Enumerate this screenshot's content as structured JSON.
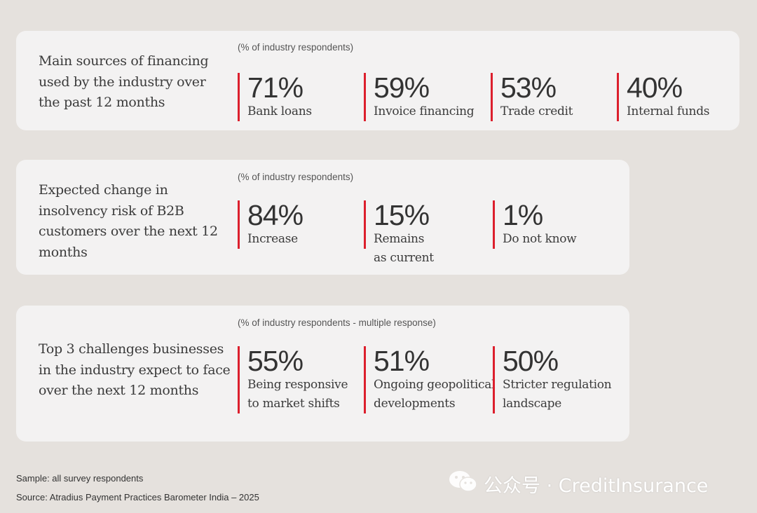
{
  "panels": [
    {
      "heading": "Main sources of financing used by the industry over the past 12 months",
      "note": "(% of industry respondents)",
      "stats": [
        {
          "value": "71%",
          "label": "Bank loans"
        },
        {
          "value": "59%",
          "label": "Invoice financing"
        },
        {
          "value": "53%",
          "label": "Trade credit"
        },
        {
          "value": "40%",
          "label": "Internal funds"
        }
      ]
    },
    {
      "heading": "Expected change in insolvency risk of B2B customers over the next 12 months",
      "note": "(% of industry respondents)",
      "stats": [
        {
          "value": "84%",
          "label": "Increase"
        },
        {
          "value": "15%",
          "label_line1": "Remains",
          "label_line2": "as current"
        },
        {
          "value": "1%",
          "label": "Do not know"
        }
      ]
    },
    {
      "heading": "Top 3 challenges businesses in the industry expect to face over the next 12 months",
      "note": "(% of industry respondents - multiple response)",
      "stats": [
        {
          "value": "55%",
          "label_line1": "Being responsive",
          "label_line2": "to market shifts"
        },
        {
          "value": "51%",
          "label_line1": "Ongoing geopolitical",
          "label_line2": "developments"
        },
        {
          "value": "50%",
          "label_line1": "Stricter regulation",
          "label_line2": "landscape"
        }
      ]
    }
  ],
  "footer": {
    "sample": "Sample: all survey respondents",
    "source": "Source: Atradius Payment Practices Barometer India – 2025"
  },
  "watermark": {
    "icon": "wechat-icon",
    "text": "公众号 · CreditInsurance"
  },
  "colors": {
    "background": "#e5e1dd",
    "panel": "#f3f2f2",
    "accent": "#dc1f2d"
  }
}
